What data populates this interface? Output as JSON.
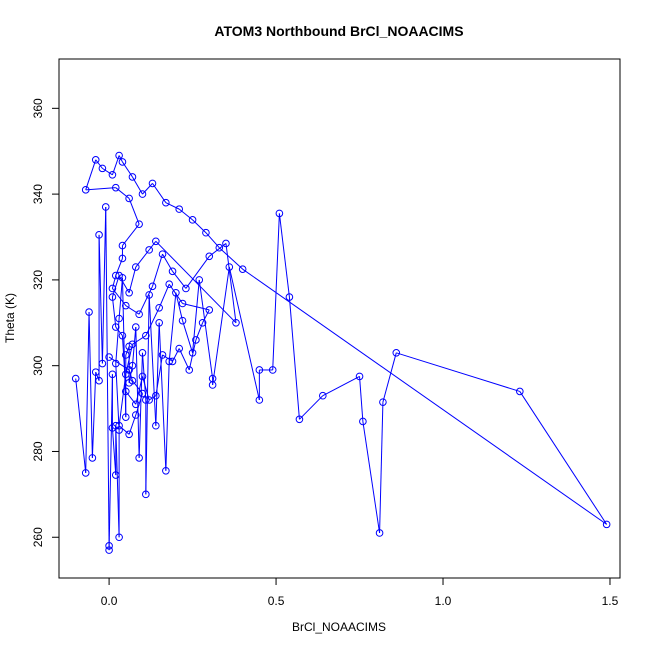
{
  "chart_data": {
    "type": "line",
    "title": "ATOM3 Northbound BrCl_NOAACIMS",
    "xlabel": "BrCl_NOAACIMS",
    "ylabel": "Theta (K)",
    "xlim": [
      -0.15,
      1.53
    ],
    "ylim": [
      250.5,
      371.5
    ],
    "xticks": [
      0.0,
      0.5,
      1.0,
      1.5
    ],
    "xtick_labels": [
      "0.0",
      "0.5",
      "1.0",
      "1.5"
    ],
    "yticks": [
      260,
      280,
      300,
      320,
      340,
      360
    ],
    "ytick_labels": [
      "260",
      "280",
      "300",
      "320",
      "340",
      "360"
    ],
    "grid": false,
    "marker": "open-circle",
    "series": [
      {
        "color": "#0000ff",
        "points": [
          [
            -0.1,
            297.0
          ],
          [
            -0.07,
            275.0
          ],
          [
            -0.06,
            312.5
          ],
          [
            -0.05,
            278.5
          ],
          [
            -0.04,
            298.5
          ],
          [
            -0.03,
            296.5
          ],
          [
            -0.03,
            330.5
          ],
          [
            -0.02,
            300.5
          ],
          [
            -0.01,
            337.0
          ],
          [
            0.0,
            258.0
          ],
          [
            0.0,
            257.0
          ],
          [
            0.01,
            298.0
          ],
          [
            0.01,
            285.5
          ],
          [
            0.02,
            274.5
          ],
          [
            0.02,
            286.0
          ],
          [
            0.03,
            260.0
          ],
          [
            0.03,
            285.0
          ],
          [
            0.02,
            300.5
          ],
          [
            0.03,
            311.0
          ],
          [
            0.04,
            320.5
          ],
          [
            0.05,
            288.0
          ],
          [
            0.05,
            302.5
          ],
          [
            0.06,
            304.5
          ],
          [
            0.06,
            296.0
          ],
          [
            0.07,
            300.0
          ],
          [
            0.08,
            309.0
          ],
          [
            0.09,
            278.5
          ],
          [
            0.1,
            303.0
          ],
          [
            0.11,
            292.0
          ],
          [
            0.11,
            270.0
          ],
          [
            0.12,
            316.5
          ],
          [
            0.14,
            286.0
          ],
          [
            0.15,
            310.0
          ],
          [
            0.17,
            275.5
          ],
          [
            0.18,
            301.0
          ],
          [
            0.2,
            317.0
          ],
          [
            0.22,
            310.5
          ],
          [
            0.25,
            303.0
          ],
          [
            0.27,
            320.0
          ],
          [
            0.31,
            297.0
          ],
          [
            0.31,
            295.5
          ],
          [
            0.36,
            323.0
          ],
          [
            0.45,
            292.0
          ],
          [
            0.45,
            299.0
          ],
          [
            0.49,
            299.0
          ],
          [
            0.51,
            335.5
          ],
          [
            0.54,
            316.0
          ],
          [
            0.57,
            287.5
          ],
          [
            0.64,
            293.0
          ],
          [
            0.75,
            297.5
          ],
          [
            0.76,
            287.0
          ],
          [
            0.81,
            261.0
          ],
          [
            0.82,
            291.5
          ],
          [
            0.86,
            303.0
          ],
          [
            1.23,
            294.0
          ],
          [
            1.49,
            263.0
          ],
          [
            0.4,
            322.5
          ],
          [
            0.33,
            327.5
          ],
          [
            0.29,
            331.0
          ],
          [
            0.25,
            334.0
          ],
          [
            0.21,
            336.5
          ],
          [
            0.17,
            338.0
          ],
          [
            0.13,
            342.5
          ],
          [
            0.1,
            340.0
          ],
          [
            0.07,
            344.0
          ],
          [
            0.04,
            347.5
          ],
          [
            0.03,
            349.0
          ],
          [
            0.01,
            344.5
          ],
          [
            -0.02,
            346.0
          ],
          [
            -0.04,
            348.0
          ],
          [
            -0.07,
            341.0
          ],
          [
            0.02,
            341.5
          ],
          [
            0.06,
            339.0
          ],
          [
            0.09,
            333.0
          ],
          [
            0.04,
            328.0
          ],
          [
            0.04,
            325.0
          ],
          [
            0.02,
            321.0
          ],
          [
            0.01,
            318.0
          ],
          [
            0.05,
            314.0
          ],
          [
            0.09,
            312.0
          ],
          [
            0.13,
            318.5
          ],
          [
            0.16,
            326.0
          ],
          [
            0.19,
            322.0
          ],
          [
            0.23,
            318.0
          ],
          [
            0.3,
            325.5
          ],
          [
            0.35,
            328.5
          ],
          [
            0.38,
            310.0
          ],
          [
            0.14,
            329.0
          ],
          [
            0.12,
            327.0
          ],
          [
            0.08,
            323.0
          ],
          [
            0.06,
            317.0
          ],
          [
            0.03,
            321.0
          ],
          [
            0.01,
            316.0
          ],
          [
            0.02,
            309.0
          ],
          [
            0.04,
            307.0
          ],
          [
            0.05,
            294.0
          ],
          [
            0.08,
            291.0
          ],
          [
            0.1,
            297.5
          ],
          [
            0.12,
            292.0
          ],
          [
            0.14,
            293.0
          ],
          [
            0.16,
            302.5
          ],
          [
            0.19,
            301.0
          ],
          [
            0.21,
            304.0
          ],
          [
            0.24,
            299.0
          ],
          [
            0.26,
            306.0
          ],
          [
            0.28,
            310.0
          ],
          [
            0.3,
            313.0
          ],
          [
            0.22,
            314.5
          ],
          [
            0.18,
            319.0
          ],
          [
            0.15,
            313.5
          ],
          [
            0.11,
            307.0
          ],
          [
            0.07,
            305.0
          ],
          [
            0.05,
            298.0
          ],
          [
            0.03,
            286.0
          ],
          [
            0.06,
            284.0
          ],
          [
            0.08,
            288.5
          ],
          [
            0.1,
            293.5
          ],
          [
            0.07,
            296.5
          ],
          [
            0.06,
            299.0
          ],
          [
            0.0,
            302.0
          ]
        ]
      }
    ]
  }
}
